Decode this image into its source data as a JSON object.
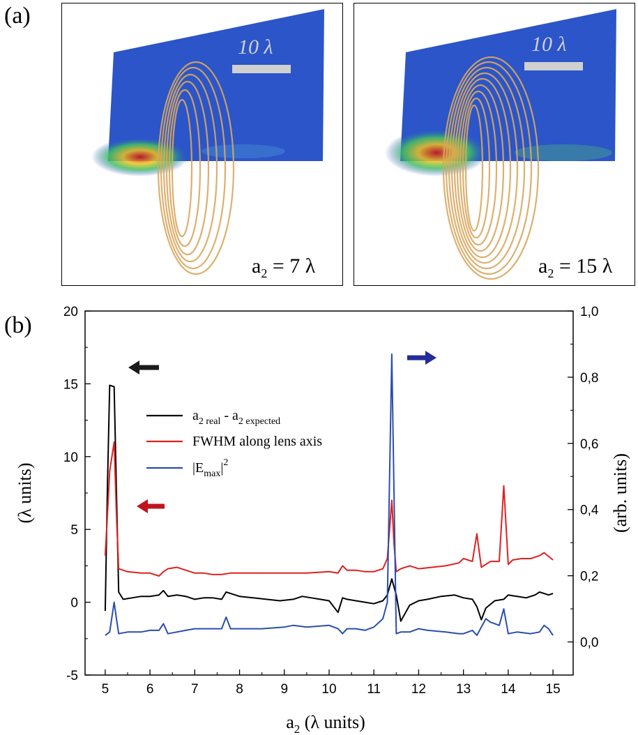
{
  "labels": {
    "a": "(a)",
    "b": "(b)"
  },
  "panel_a": {
    "left": {
      "scale": "10 λ",
      "caption_main": "a",
      "caption_sub": "2",
      "caption_rest": " = 7 λ"
    },
    "right": {
      "scale": "10 λ",
      "caption_main": "a",
      "caption_sub": "2",
      "caption_rest": " = 15 λ"
    }
  },
  "chart_data": {
    "type": "line",
    "xlabel": {
      "main": "a",
      "sub": "2",
      "rest": " (λ units)"
    },
    "ylabel_left": "(λ units)",
    "ylabel_right": "(arb. units)",
    "xlim": [
      4.55,
      15.45
    ],
    "ylim_left": [
      -5,
      20
    ],
    "ylim_right": [
      -0.1,
      1.0
    ],
    "x_ticks": [
      "5",
      "6",
      "7",
      "8",
      "9",
      "10",
      "11",
      "12",
      "13",
      "14",
      "15"
    ],
    "y_left_ticks": [
      "-5",
      "0",
      "5",
      "10",
      "15",
      "20"
    ],
    "y_right_ticks": [
      "0,0",
      "0,2",
      "0,4",
      "0,6",
      "0,8",
      "1,0"
    ],
    "colors": {
      "black": "#000000",
      "red": "#e02020",
      "blue": "#2a4db0",
      "arrow_black": "#1a1a1a",
      "arrow_red": "#c0141e",
      "arrow_blue": "#232c9a"
    },
    "legend": [
      {
        "main": "a",
        "sub": "2 real",
        "mid": " - a",
        "sub2": "2 expected",
        "color": "#000000"
      },
      {
        "main": "FWHM along lens axis",
        "color": "#e02020"
      },
      {
        "main": "|E",
        "sub": "max",
        "mid": "|",
        "sup": "2",
        "color": "#2a4db0"
      }
    ],
    "series": [
      {
        "axis": "left",
        "color": "#000000",
        "x": [
          5.0,
          5.05,
          5.1,
          5.2,
          5.3,
          5.4,
          5.6,
          5.8,
          6.0,
          6.2,
          6.3,
          6.4,
          6.6,
          6.8,
          7.0,
          7.2,
          7.4,
          7.6,
          7.7,
          7.8,
          8.0,
          8.3,
          8.6,
          8.9,
          9.2,
          9.4,
          9.6,
          9.8,
          10.0,
          10.2,
          10.3,
          10.4,
          10.6,
          10.8,
          11.0,
          11.2,
          11.3,
          11.4,
          11.5,
          11.6,
          11.8,
          12.0,
          12.2,
          12.5,
          12.8,
          13.0,
          13.2,
          13.3,
          13.4,
          13.5,
          13.7,
          13.9,
          14.0,
          14.2,
          14.4,
          14.6,
          14.7,
          14.8,
          14.9,
          15.0
        ],
        "y": [
          -0.6,
          8.0,
          14.9,
          14.8,
          0.7,
          0.2,
          0.3,
          0.4,
          0.4,
          0.5,
          0.8,
          0.4,
          0.5,
          0.4,
          0.2,
          0.3,
          0.3,
          0.2,
          0.7,
          0.6,
          0.4,
          0.3,
          0.2,
          0.1,
          0.2,
          0.4,
          0.3,
          0.2,
          0.1,
          -0.7,
          0.3,
          0.2,
          0.1,
          0.0,
          -0.1,
          0.1,
          0.5,
          1.6,
          0.5,
          -1.3,
          -0.2,
          0.1,
          0.2,
          0.4,
          0.5,
          0.3,
          0.2,
          -0.3,
          -1.2,
          -0.4,
          0.1,
          0.2,
          0.5,
          0.4,
          0.3,
          0.5,
          0.7,
          0.6,
          0.5,
          0.6
        ]
      },
      {
        "axis": "left",
        "color": "#e02020",
        "x": [
          5.0,
          5.05,
          5.1,
          5.2,
          5.25,
          5.3,
          5.5,
          5.8,
          6.0,
          6.2,
          6.3,
          6.4,
          6.6,
          6.8,
          7.0,
          7.2,
          7.4,
          7.6,
          7.8,
          8.0,
          8.5,
          9.0,
          9.5,
          10.0,
          10.2,
          10.3,
          10.4,
          10.6,
          10.8,
          11.0,
          11.2,
          11.3,
          11.4,
          11.45,
          11.5,
          11.6,
          11.8,
          12.0,
          12.3,
          12.6,
          12.9,
          13.0,
          13.2,
          13.3,
          13.4,
          13.6,
          13.8,
          13.9,
          14.0,
          14.1,
          14.3,
          14.5,
          14.7,
          14.8,
          15.0
        ],
        "y": [
          3.2,
          6.0,
          9.0,
          11.0,
          6.0,
          2.3,
          2.1,
          2.0,
          2.0,
          1.8,
          2.1,
          2.3,
          2.4,
          2.2,
          2.0,
          2.0,
          1.9,
          1.9,
          2.0,
          2.0,
          2.0,
          2.0,
          2.0,
          2.1,
          2.0,
          2.5,
          2.2,
          2.2,
          2.1,
          2.1,
          2.3,
          3.0,
          7.0,
          4.0,
          2.1,
          2.3,
          2.5,
          2.3,
          2.4,
          2.5,
          2.7,
          3.0,
          2.8,
          4.7,
          2.4,
          2.8,
          2.8,
          8.0,
          2.6,
          2.9,
          3.0,
          3.0,
          3.2,
          3.4,
          2.9
        ]
      },
      {
        "axis": "right",
        "color": "#2a4db0",
        "x": [
          5.0,
          5.1,
          5.2,
          5.25,
          5.3,
          5.5,
          5.8,
          6.0,
          6.2,
          6.3,
          6.4,
          6.6,
          6.8,
          7.0,
          7.2,
          7.4,
          7.6,
          7.7,
          7.8,
          8.0,
          8.5,
          9.0,
          9.2,
          9.5,
          10.0,
          10.2,
          10.3,
          10.4,
          10.6,
          10.8,
          11.0,
          11.2,
          11.3,
          11.4,
          11.5,
          11.6,
          11.8,
          12.0,
          12.2,
          12.6,
          12.9,
          13.0,
          13.2,
          13.3,
          13.5,
          13.6,
          13.8,
          13.9,
          14.0,
          14.2,
          14.5,
          14.7,
          14.8,
          14.9,
          15.0
        ],
        "y": [
          0.02,
          0.03,
          0.12,
          0.07,
          0.025,
          0.03,
          0.03,
          0.035,
          0.035,
          0.055,
          0.025,
          0.03,
          0.035,
          0.04,
          0.04,
          0.04,
          0.04,
          0.075,
          0.04,
          0.04,
          0.04,
          0.045,
          0.05,
          0.045,
          0.05,
          0.04,
          0.025,
          0.04,
          0.04,
          0.035,
          0.045,
          0.07,
          0.12,
          0.87,
          0.025,
          0.03,
          0.03,
          0.04,
          0.035,
          0.03,
          0.025,
          0.025,
          0.035,
          0.02,
          0.07,
          0.06,
          0.05,
          0.1,
          0.025,
          0.03,
          0.025,
          0.03,
          0.05,
          0.04,
          0.02
        ]
      }
    ]
  }
}
